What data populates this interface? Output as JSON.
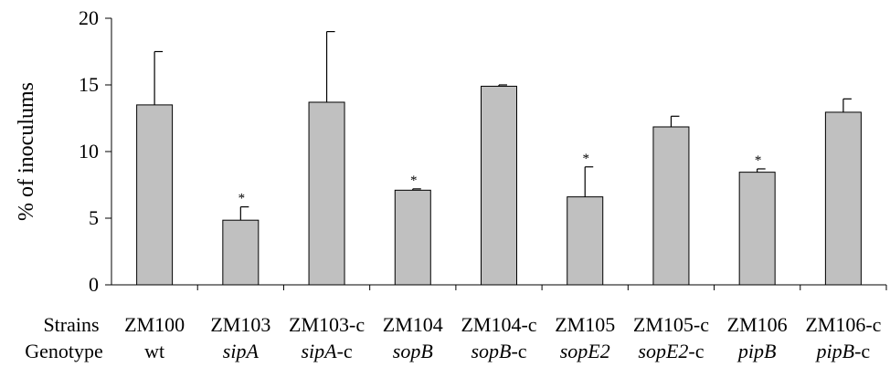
{
  "chart_data": {
    "type": "bar",
    "title": "",
    "xlabel": "",
    "ylabel": "% of inoculums",
    "ylim": [
      0,
      20
    ],
    "yticks": [
      0,
      5,
      10,
      15,
      20
    ],
    "grid": false,
    "bar_color": "#c0c0c0",
    "row_labels": {
      "strains": "Strains",
      "genotype": "Genotype"
    },
    "categories": [
      "ZM100",
      "ZM103",
      "ZM103-c",
      "ZM104",
      "ZM104-c",
      "ZM105",
      "ZM105-c",
      "ZM106",
      "ZM106-c"
    ],
    "genotypes": [
      {
        "italic": "",
        "suffix": "wt"
      },
      {
        "italic": "sipA",
        "suffix": ""
      },
      {
        "italic": "sipA",
        "suffix": "-c"
      },
      {
        "italic": "sopB",
        "suffix": ""
      },
      {
        "italic": "sopB",
        "suffix": "-c"
      },
      {
        "italic": "sopE2",
        "suffix": ""
      },
      {
        "italic": "sopE2",
        "suffix": "-c"
      },
      {
        "italic": "pipB",
        "suffix": ""
      },
      {
        "italic": "pipB",
        "suffix": "-c"
      }
    ],
    "values": [
      13.5,
      4.85,
      13.7,
      7.1,
      14.9,
      6.6,
      11.85,
      8.45,
      12.95
    ],
    "errors": [
      4.0,
      1.0,
      5.3,
      0.1,
      0.1,
      2.25,
      0.8,
      0.25,
      1.0
    ],
    "significance": [
      "",
      "*",
      "",
      "*",
      "",
      "*",
      "",
      "*",
      ""
    ]
  }
}
